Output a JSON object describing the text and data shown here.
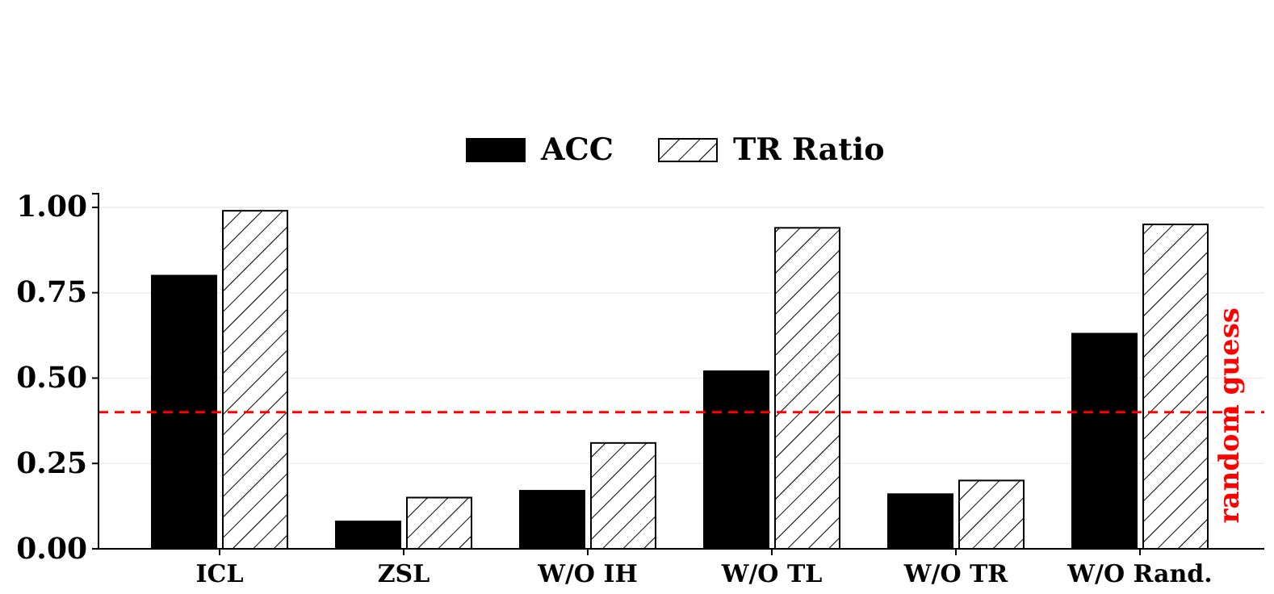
{
  "chart_data": {
    "type": "bar",
    "categories": [
      "ICL",
      "ZSL",
      "W/O IH",
      "W/O TL",
      "W/O TR",
      "W/O Rand."
    ],
    "series": [
      {
        "name": "ACC",
        "color": "#000000",
        "values": [
          0.8,
          0.08,
          0.17,
          0.52,
          0.16,
          0.63
        ]
      },
      {
        "name": "TR Ratio",
        "color": "#ffffff",
        "values": [
          0.99,
          0.15,
          0.31,
          0.94,
          0.2,
          0.95
        ]
      }
    ],
    "ylim": [
      0,
      1.04
    ],
    "yticks": [
      {
        "value": 0,
        "label": "0.00"
      },
      {
        "value": 0.25,
        "label": "0.25"
      },
      {
        "value": 0.5,
        "label": "0.50"
      },
      {
        "value": 0.75,
        "label": "0.75"
      },
      {
        "value": 1,
        "label": "1.00"
      }
    ],
    "grid": "y",
    "legend": "top",
    "ref_lines": [
      {
        "axis": "y",
        "value": 0.4,
        "label": "random guess",
        "color": "#ff0000",
        "line_style": "dashed"
      }
    ]
  }
}
